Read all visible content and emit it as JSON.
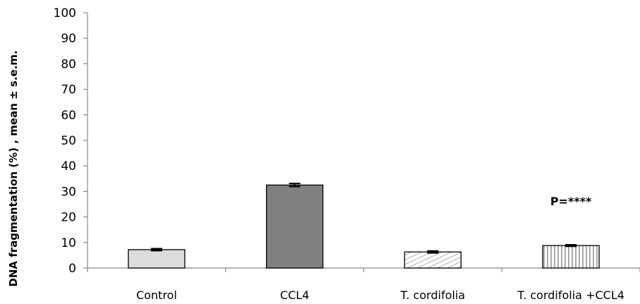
{
  "chart_data": {
    "type": "bar",
    "categories": [
      "Control",
      "CCL4",
      "T. cordifolia",
      "T. cordifolia +CCL4"
    ],
    "values": [
      7.2,
      32.5,
      6.3,
      8.8
    ],
    "errors": [
      0.4,
      0.6,
      0.4,
      0.3
    ],
    "fills": [
      "#dcdcdc",
      "#808080",
      "hatch-diagonal",
      "hatch-vertical"
    ],
    "title": "",
    "xlabel": "",
    "ylabel": "DNA fragmentation  (%) , mean ± s.e.m.",
    "ylim": [
      0,
      100
    ],
    "yticks": [
      0,
      10,
      20,
      30,
      40,
      50,
      60,
      70,
      80,
      90,
      100
    ],
    "grid": false,
    "annotations": [
      {
        "text": "P=****",
        "category": "T. cordifolia +CCL4",
        "y": 26
      }
    ]
  }
}
